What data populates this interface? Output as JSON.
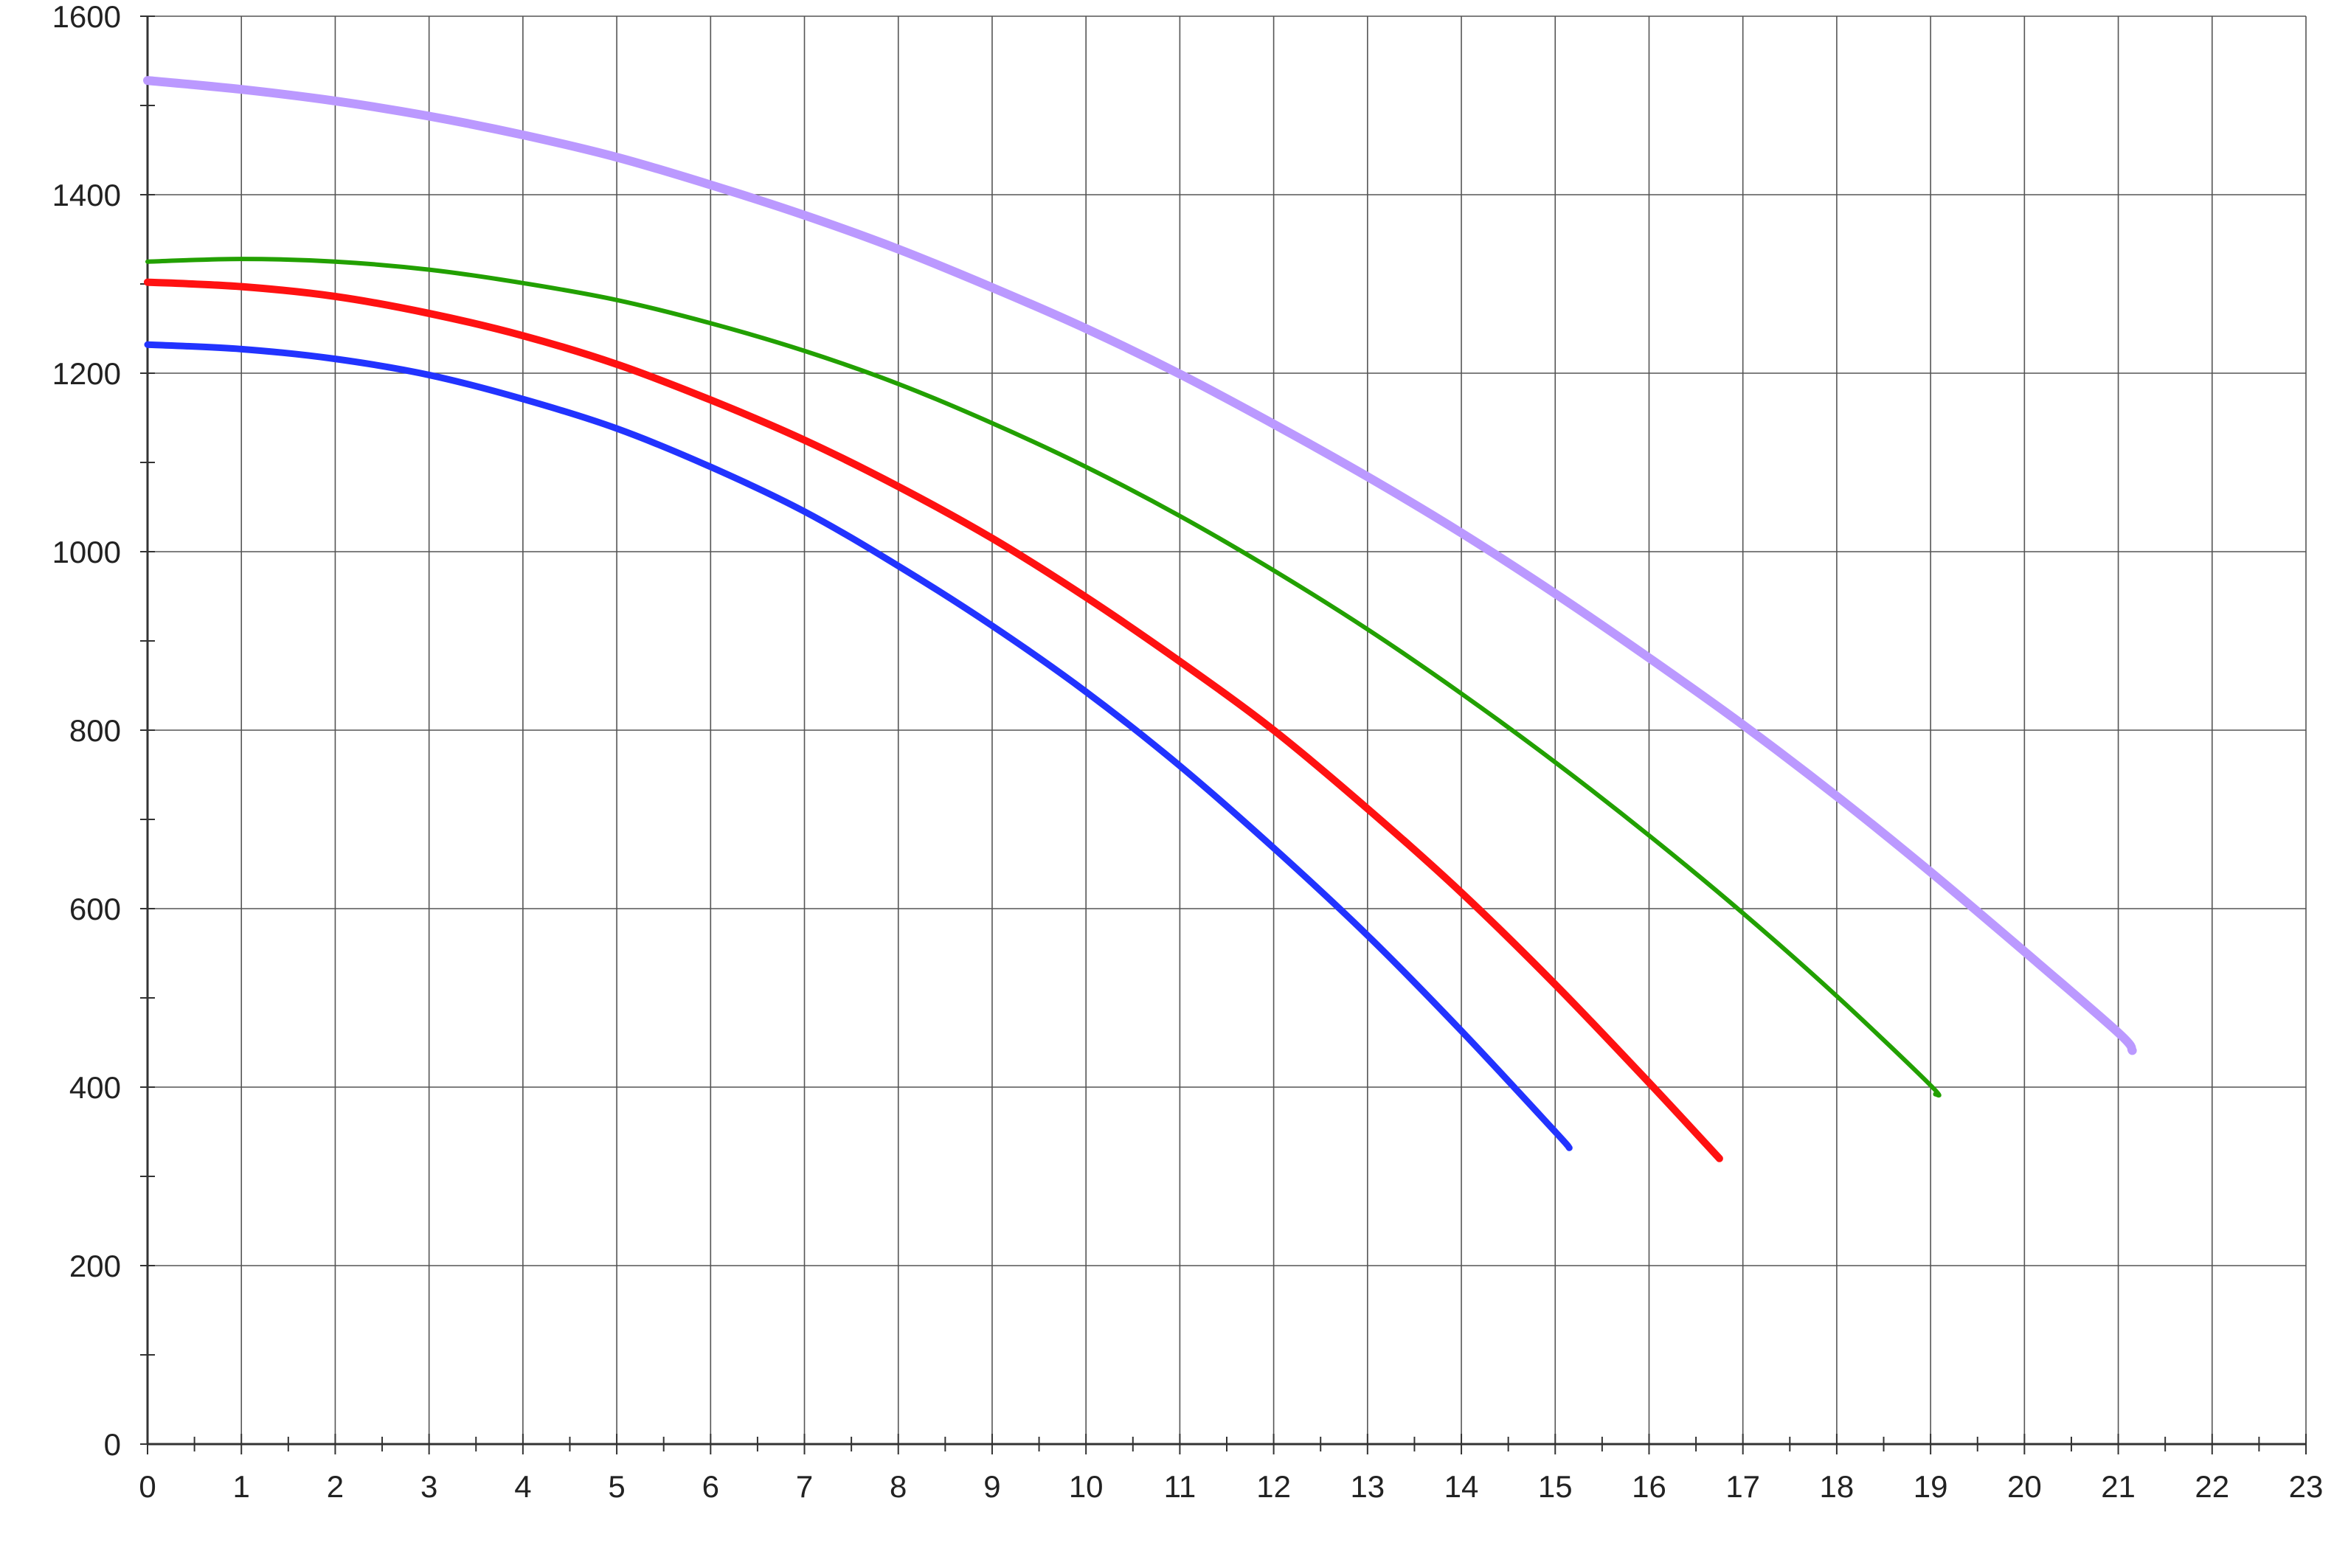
{
  "chart_data": {
    "type": "line",
    "title": "",
    "xlabel": "",
    "ylabel": "",
    "xlim": [
      0,
      23
    ],
    "ylim": [
      0,
      1600
    ],
    "x_ticks": [
      "0",
      "1",
      "2",
      "3",
      "4",
      "5",
      "6",
      "7",
      "8",
      "9",
      "10",
      "11",
      "12",
      "13",
      "14",
      "15",
      "16",
      "17",
      "18",
      "19",
      "20",
      "21",
      "22",
      "23"
    ],
    "y_ticks": [
      "0",
      "200",
      "400",
      "600",
      "800",
      "1000",
      "1200",
      "1400",
      "1600"
    ],
    "grid": true,
    "legend": "none",
    "series": [
      {
        "color": "#bb99ff",
        "x": [
          0,
          1,
          2,
          3,
          4,
          5,
          6,
          7,
          8,
          9,
          10,
          11,
          12,
          13,
          14,
          15,
          16,
          17,
          18,
          19,
          20,
          21,
          21.15
        ],
        "y": [
          1528,
          1518,
          1505,
          1488,
          1467,
          1442,
          1411,
          1377,
          1339,
          1296,
          1250,
          1199,
          1143,
          1084,
          1021,
          953,
          881,
          806,
          726,
          641,
          552,
          461,
          441
        ]
      },
      {
        "color": "#22a000",
        "x": [
          0,
          1,
          2,
          3,
          4,
          5,
          6,
          7,
          8,
          9,
          10,
          11,
          12,
          13,
          14,
          15,
          16,
          17,
          18,
          19,
          19.05
        ],
        "y": [
          1325,
          1328,
          1325,
          1316,
          1301,
          1282,
          1256,
          1225,
          1188,
          1144,
          1095,
          1040,
          979,
          913,
          841,
          764,
          682,
          595,
          502,
          402,
          392
        ]
      },
      {
        "color": "#ff1111",
        "x": [
          0,
          1,
          2,
          3,
          4,
          5,
          6,
          7,
          8,
          9,
          10,
          11,
          12,
          13,
          14,
          15,
          16,
          16.75
        ],
        "y": [
          1302,
          1297,
          1286,
          1267,
          1242,
          1210,
          1170,
          1125,
          1073,
          1015,
          949,
          877,
          800,
          712,
          618,
          515,
          405,
          320
        ]
      },
      {
        "color": "#2233ff",
        "x": [
          0,
          1,
          2,
          3,
          4,
          5,
          6,
          7,
          8,
          9,
          10,
          11,
          12,
          13,
          14,
          15,
          15.15
        ],
        "y": [
          1232,
          1227,
          1216,
          1198,
          1171,
          1138,
          1095,
          1045,
          984,
          917,
          843,
          760,
          668,
          570,
          463,
          350,
          332
        ]
      }
    ]
  }
}
